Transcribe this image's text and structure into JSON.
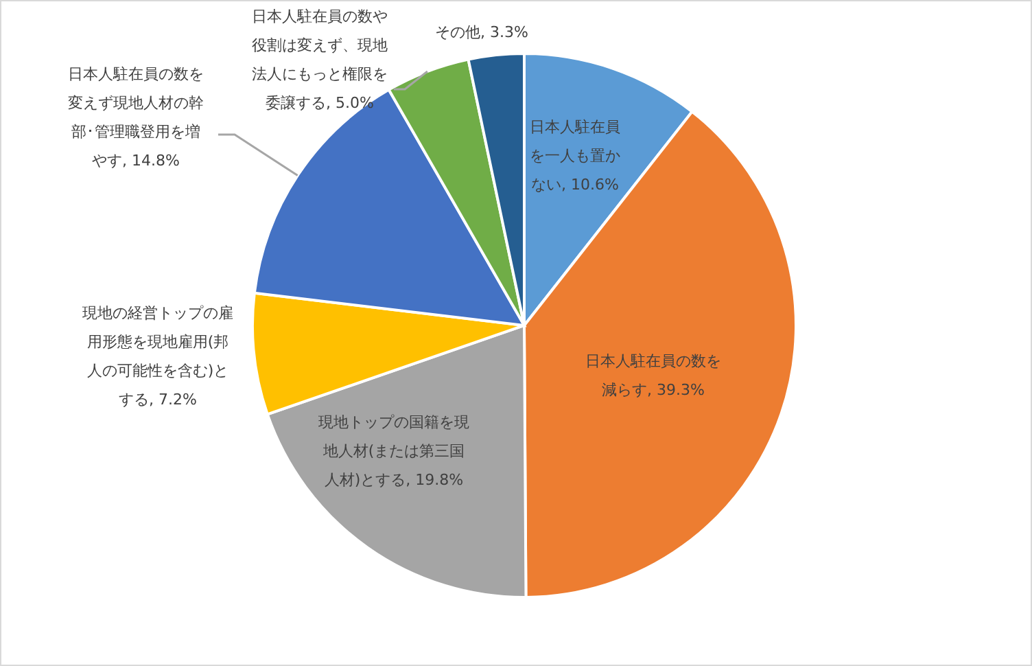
{
  "chart_data": {
    "type": "pie",
    "categories": [
      "日本人駐在員を一人も置かない",
      "日本人駐在員の数を減らす",
      "現地トップの国籍を現地人材(または第三国人材)とする",
      "現地の経営トップの雇用形態を現地雇用(邦人の可能性を含む)とする",
      "日本人駐在員の数を変えず現地人材の幹部･管理職登用を増やす",
      "日本人駐在員の数や役割は変えず、現地法人にもっと権限を委譲する",
      "その他"
    ],
    "values": [
      10.6,
      39.3,
      19.8,
      7.2,
      14.8,
      5.0,
      3.3
    ],
    "value_labels": [
      "10.6%",
      "39.3%",
      "19.8%",
      "7.2%",
      "14.8%",
      "5.0%",
      "3.3%"
    ],
    "colors": [
      "#5b9bd5",
      "#ed7d31",
      "#a5a5a5",
      "#ffc000",
      "#4472c4",
      "#70ad47",
      "#255e91"
    ],
    "legend": false
  }
}
